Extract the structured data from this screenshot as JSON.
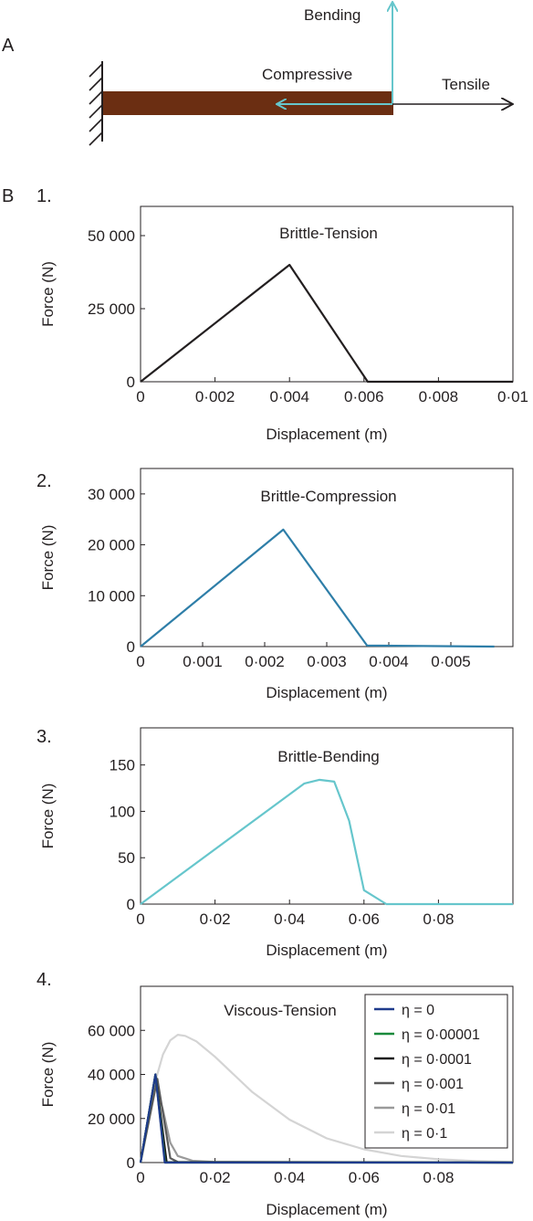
{
  "panel_a": {
    "letter": "A",
    "labels": {
      "bending": "Bending",
      "compressive": "Compressive",
      "tensile": "Tensile"
    },
    "colors": {
      "beam": "#6b2e12",
      "compressive_arrow": "#66c6cc",
      "bending_arrow": "#66c6cc",
      "tensile_arrow": "#231f20"
    }
  },
  "panel_b": {
    "letter": "B"
  },
  "chart_data": [
    {
      "type": "line",
      "number": "1.",
      "title": "Brittle-Tension",
      "xlabel": "Displacement (m)",
      "ylabel": "Force (N)",
      "xlim": [
        0,
        0.01
      ],
      "ylim": [
        0,
        60000
      ],
      "xticks": [
        0,
        0.002,
        0.004,
        0.006,
        0.008,
        0.01
      ],
      "xtick_labels": [
        "0",
        "0·002",
        "0·004",
        "0·006",
        "0·008",
        "0·01"
      ],
      "yticks": [
        0,
        25000,
        50000
      ],
      "ytick_labels": [
        "0",
        "25 000",
        "50 000"
      ],
      "grid": false,
      "series": [
        {
          "color": "#231f20",
          "x": [
            0,
            0.004,
            0.0061,
            0.01
          ],
          "y": [
            0,
            40000,
            0,
            0
          ]
        }
      ]
    },
    {
      "type": "line",
      "number": "2.",
      "title": "Brittle-Compression",
      "xlabel": "Displacement (m)",
      "ylabel": "Force (N)",
      "xlim": [
        0,
        0.006
      ],
      "ylim": [
        0,
        35000
      ],
      "xticks": [
        0,
        0.001,
        0.002,
        0.003,
        0.004,
        0.005
      ],
      "xtick_labels": [
        "0",
        "0·001",
        "0·002",
        "0·003",
        "0·004",
        "0·005"
      ],
      "yticks": [
        0,
        10000,
        20000,
        30000
      ],
      "ytick_labels": [
        "0",
        "10 000",
        "20 000",
        "30 000"
      ],
      "grid": false,
      "series": [
        {
          "color": "#2e7ea8",
          "x": [
            0,
            0.0023,
            0.00365,
            0.0057
          ],
          "y": [
            0,
            23000,
            200,
            0
          ]
        }
      ]
    },
    {
      "type": "line",
      "number": "3.",
      "title": "Brittle-Bending",
      "xlabel": "Displacement (m)",
      "ylabel": "Force (N)",
      "xlim": [
        0,
        0.1
      ],
      "ylim": [
        0,
        190
      ],
      "xticks": [
        0,
        0.02,
        0.04,
        0.06,
        0.08
      ],
      "xtick_labels": [
        "0",
        "0·02",
        "0·04",
        "0·06",
        "0·08"
      ],
      "yticks": [
        0,
        50,
        100,
        150
      ],
      "ytick_labels": [
        "0",
        "50",
        "100",
        "150"
      ],
      "grid": false,
      "series": [
        {
          "color": "#66c6cc",
          "x": [
            0,
            0.044,
            0.048,
            0.052,
            0.056,
            0.06,
            0.066,
            0.1
          ],
          "y": [
            0,
            130,
            134,
            132,
            90,
            15,
            0,
            0
          ]
        }
      ]
    },
    {
      "type": "line",
      "number": "4.",
      "title": "Viscous-Tension",
      "xlabel": "Displacement (m)",
      "ylabel": "Force (N)",
      "xlim": [
        0,
        0.1
      ],
      "ylim": [
        0,
        80000
      ],
      "xticks": [
        0,
        0.02,
        0.04,
        0.06,
        0.08
      ],
      "xtick_labels": [
        "0",
        "0·02",
        "0·04",
        "0·06",
        "0·08"
      ],
      "yticks": [
        0,
        20000,
        40000,
        60000
      ],
      "ytick_labels": [
        "0",
        "20 000",
        "40 000",
        "60 000"
      ],
      "grid": false,
      "legend": "top-right",
      "series": [
        {
          "name": "η = 0",
          "color": "#1f3b8c",
          "x": [
            0,
            0.004,
            0.0065,
            0.1
          ],
          "y": [
            0,
            40000,
            0,
            0
          ]
        },
        {
          "name": "η = 0·00001",
          "color": "#1a8a3c",
          "x": [
            0,
            0.004,
            0.0066,
            0.1
          ],
          "y": [
            0,
            40000,
            0,
            0
          ]
        },
        {
          "name": "η = 0·0001",
          "color": "#1a1a1a",
          "x": [
            0,
            0.004,
            0.007,
            0.1
          ],
          "y": [
            0,
            40000,
            200,
            0
          ]
        },
        {
          "name": "η = 0·001",
          "color": "#5a5a5a",
          "x": [
            0,
            0.0045,
            0.008,
            0.01,
            0.1
          ],
          "y": [
            0,
            38000,
            2000,
            300,
            0
          ]
        },
        {
          "name": "η = 0·01",
          "color": "#9a9a9a",
          "x": [
            0,
            0.004,
            0.006,
            0.008,
            0.01,
            0.014,
            0.02,
            0.1
          ],
          "y": [
            0,
            36000,
            24000,
            9000,
            3000,
            800,
            300,
            0
          ]
        },
        {
          "name": "η = 0·1",
          "color": "#d4d4d4",
          "x": [
            0,
            0.002,
            0.004,
            0.006,
            0.008,
            0.01,
            0.012,
            0.015,
            0.02,
            0.025,
            0.03,
            0.04,
            0.05,
            0.06,
            0.07,
            0.08,
            0.09,
            0.1
          ],
          "y": [
            0,
            20000,
            37000,
            49000,
            55500,
            58000,
            57500,
            55000,
            48000,
            40000,
            32000,
            19500,
            11000,
            6000,
            3000,
            1500,
            700,
            300
          ]
        }
      ]
    }
  ]
}
